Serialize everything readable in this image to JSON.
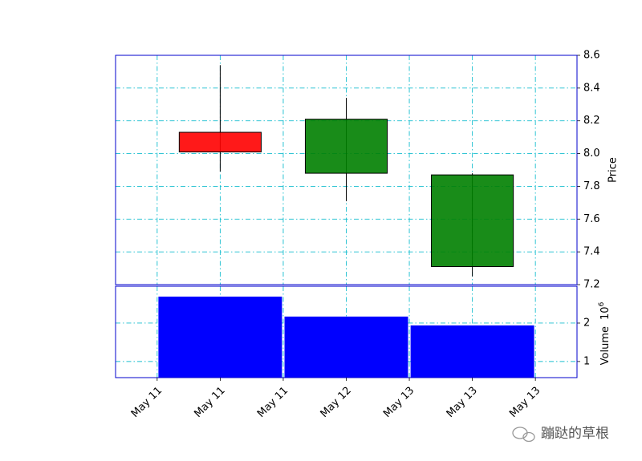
{
  "chart_data": [
    {
      "type": "candlestick",
      "x": [
        11,
        12,
        13
      ],
      "open": [
        8.01,
        8.21,
        7.87
      ],
      "close": [
        8.13,
        7.88,
        7.31
      ],
      "high": [
        8.54,
        8.34,
        7.88
      ],
      "low": [
        7.89,
        7.71,
        7.25
      ],
      "up_color": "#ff0000",
      "down_color": "#008000",
      "xlim": [
        10.17,
        13.83
      ],
      "xticks": [
        {
          "value": 10.5,
          "label": "May 11"
        },
        {
          "value": 11,
          "label": "May 11"
        },
        {
          "value": 11.5,
          "label": "May 11"
        },
        {
          "value": 12,
          "label": "May 12"
        },
        {
          "value": 12.5,
          "label": "May 13"
        },
        {
          "value": 13,
          "label": "May 13"
        },
        {
          "value": 13.5,
          "label": "May 13"
        }
      ],
      "ylim": [
        7.2,
        8.6
      ],
      "yticks": [
        {
          "value": 7.2,
          "label": "7.2"
        },
        {
          "value": 7.4,
          "label": "7.4"
        },
        {
          "value": 7.6,
          "label": "7.6"
        },
        {
          "value": 7.8,
          "label": "7.8"
        },
        {
          "value": 8.0,
          "label": "8.0"
        },
        {
          "value": 8.2,
          "label": "8.2"
        },
        {
          "value": 8.4,
          "label": "8.4"
        },
        {
          "value": 8.6,
          "label": "8.6"
        }
      ],
      "y_label": "Price",
      "grid": true
    },
    {
      "type": "bar",
      "x": [
        11,
        12,
        13
      ],
      "values": [
        2.69,
        2.17,
        1.94
      ],
      "color": "#0000ff",
      "xlim": [
        10.17,
        13.83
      ],
      "ylim": [
        0.58,
        2.96
      ],
      "yticks": [
        1,
        2
      ],
      "y_label": "Volume",
      "scale_base": "10",
      "scale_exponent": "6",
      "grid": true
    }
  ],
  "watermark": "蹦跶的草根"
}
